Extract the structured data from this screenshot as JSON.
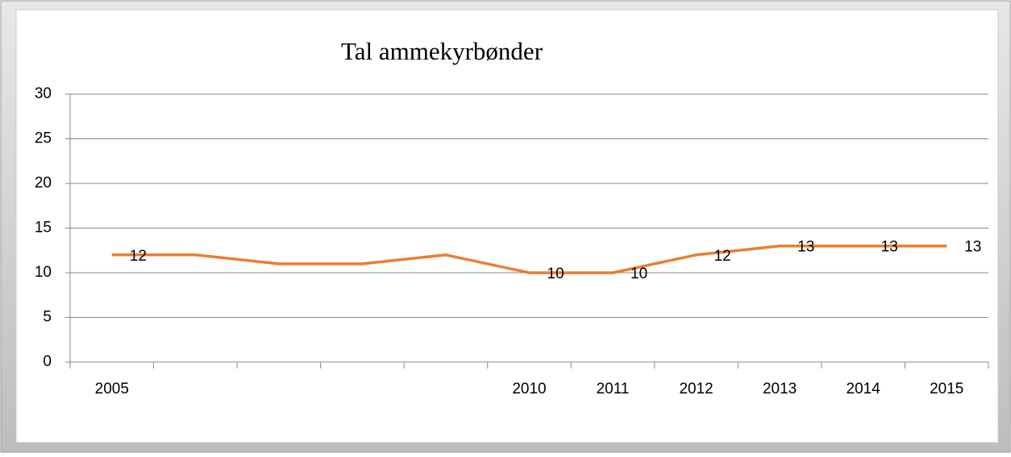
{
  "chart_data": {
    "type": "line",
    "title": "Tal ammekyrbønder",
    "categories": [
      "2005",
      null,
      null,
      null,
      null,
      "2010",
      "2011",
      "2012",
      "2013",
      "2014",
      "2015"
    ],
    "series": [
      {
        "name": "Tal ammekyrbønder",
        "color": "#ed7d31",
        "values": [
          12,
          12,
          11,
          11,
          12,
          10,
          10,
          12,
          13,
          13,
          13
        ],
        "value_labels": [
          "12",
          null,
          null,
          null,
          null,
          "10",
          "10",
          "12",
          "13",
          "13",
          "13"
        ]
      }
    ],
    "ylim": [
      0,
      30
    ],
    "yticks": [
      0,
      5,
      10,
      15,
      20,
      25,
      30
    ],
    "grid": true
  }
}
